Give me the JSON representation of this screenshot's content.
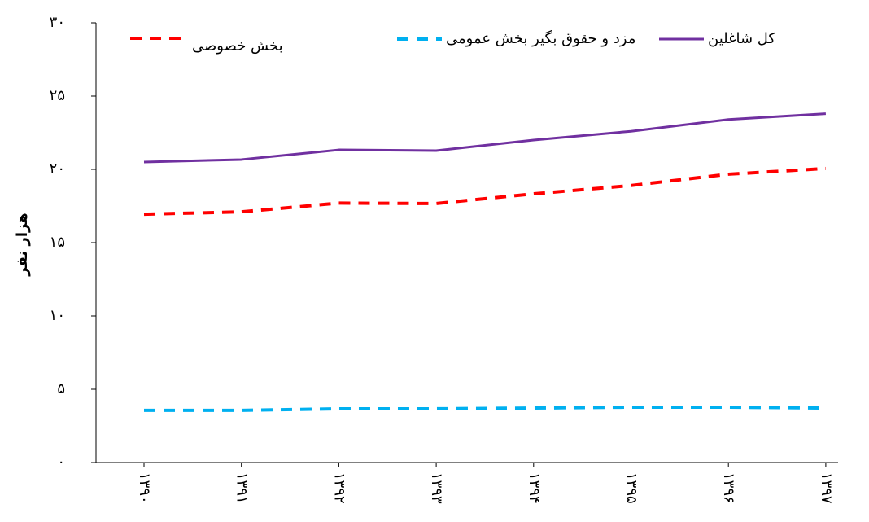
{
  "chart_data": {
    "type": "line",
    "y_label": "هزار نفر",
    "categories": [
      "۱۳۹۰",
      "۱۳۹۱",
      "۱۳۹۲",
      "۱۳۹۳",
      "۱۳۹۴",
      "۱۳۹۵",
      "۱۳۹۶",
      "۱۳۹۷"
    ],
    "series": [
      {
        "name": "کل شاغلین",
        "color": "#7030a0",
        "line_style": "solid",
        "values": [
          20.5,
          20.67,
          21.33,
          21.28,
          22.0,
          22.6,
          23.4,
          23.8
        ]
      },
      {
        "name": "مزد و حقوق بگیر بخش عمومی",
        "color": "#00b0f0",
        "line_style": "dashed",
        "values": [
          3.56,
          3.56,
          3.67,
          3.67,
          3.72,
          3.78,
          3.78,
          3.72
        ]
      },
      {
        "name": "بخش خصوصی",
        "color": "#ff0000",
        "line_style": "dashed",
        "values": [
          16.94,
          17.1,
          17.7,
          17.67,
          18.33,
          18.9,
          19.67,
          20.06
        ]
      }
    ],
    "ylim": [
      0,
      30
    ],
    "yticks": [
      {
        "value": 0,
        "label": "۰"
      },
      {
        "value": 5,
        "label": "۵"
      },
      {
        "value": 10,
        "label": "۱۰"
      },
      {
        "value": 15,
        "label": "۱۵"
      },
      {
        "value": 20,
        "label": "۲۰"
      },
      {
        "value": 25,
        "label": "۲۵"
      },
      {
        "value": 30,
        "label": "۳۰"
      }
    ],
    "grid": false,
    "legend": "top"
  }
}
